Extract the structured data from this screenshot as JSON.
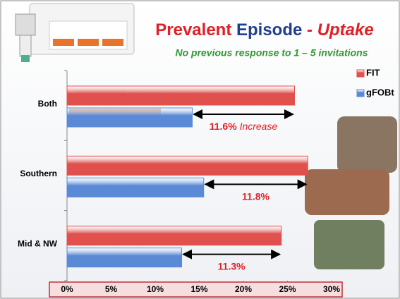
{
  "chart_data": {
    "type": "barh",
    "title": [
      "Prevalent",
      "Episode",
      "- Uptake"
    ],
    "subtitle": "No previous response to 1 – 5 invitations",
    "categories": [
      "Both",
      "Southern",
      "Mid & NW"
    ],
    "series": [
      {
        "name": "FIT",
        "color": "#e0504c",
        "values": [
          25.8,
          27.3,
          24.3
        ]
      },
      {
        "name": "gFOBt",
        "color": "#5a8ad6",
        "values": [
          14.2,
          15.5,
          13.0
        ]
      }
    ],
    "annotations": [
      {
        "text": "11.6%",
        "note": "Increase"
      },
      {
        "text": "11.8%"
      },
      {
        "text": "11.3%"
      }
    ],
    "xlim": [
      0,
      30
    ],
    "xticks": [
      {
        "value": 0,
        "label": "0%"
      },
      {
        "value": 5,
        "label": "5%"
      },
      {
        "value": 10,
        "label": "10%"
      },
      {
        "value": 15,
        "label": "15%"
      },
      {
        "value": 20,
        "label": "20%"
      },
      {
        "value": 25,
        "label": "25%"
      },
      {
        "value": 30,
        "label": "30%"
      }
    ],
    "legend": "upper right"
  }
}
